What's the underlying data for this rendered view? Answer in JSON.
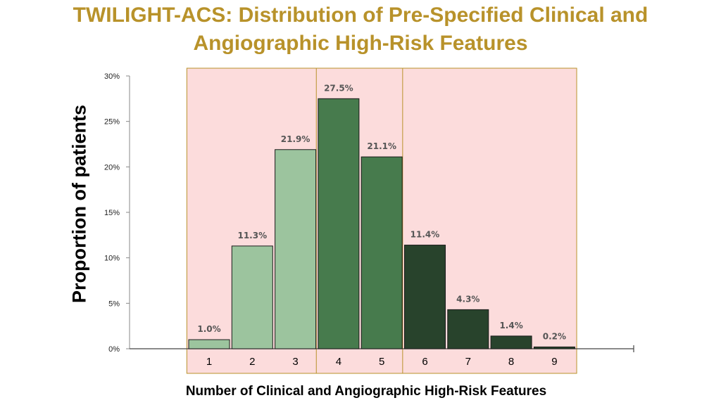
{
  "chart_data": {
    "type": "bar",
    "title": "TWILIGHT-ACS: Distribution of Pre-Specified Clinical and Angiographic High-Risk Features",
    "title_lines": [
      "TWILIGHT-ACS: Distribution of Pre-Specified Clinical and",
      "Angiographic High-Risk Features"
    ],
    "xlabel": "Number of Clinical and Angiographic High-Risk Features",
    "ylabel": "Proportion of patients",
    "categories": [
      "1",
      "2",
      "3",
      "4",
      "5",
      "6",
      "7",
      "8",
      "9"
    ],
    "values": [
      1.0,
      11.3,
      21.9,
      27.5,
      21.1,
      11.4,
      4.3,
      1.4,
      0.2
    ],
    "data_labels": [
      "1.0%",
      "11.3%",
      "21.9%",
      "27.5%",
      "21.1%",
      "11.4%",
      "4.3%",
      "1.4%",
      "0.2%"
    ],
    "yticks": [
      "0%",
      "5%",
      "10%",
      "15%",
      "20%",
      "25%",
      "30%"
    ],
    "ylim": [
      0,
      30
    ],
    "bar_colors": [
      "#9cc49e",
      "#9cc49e",
      "#9cc49e",
      "#477b4d",
      "#477b4d",
      "#28432c",
      "#28432c",
      "#28432c",
      "#28432c"
    ],
    "group_shading": {
      "fill": "#fcdcdc",
      "border": "#b8922a",
      "groups": [
        [
          "1",
          "3"
        ],
        [
          "4",
          "5"
        ],
        [
          "6",
          "9"
        ]
      ]
    },
    "grid": false,
    "legend": "none"
  },
  "colors": {
    "title": "#b8922a"
  }
}
